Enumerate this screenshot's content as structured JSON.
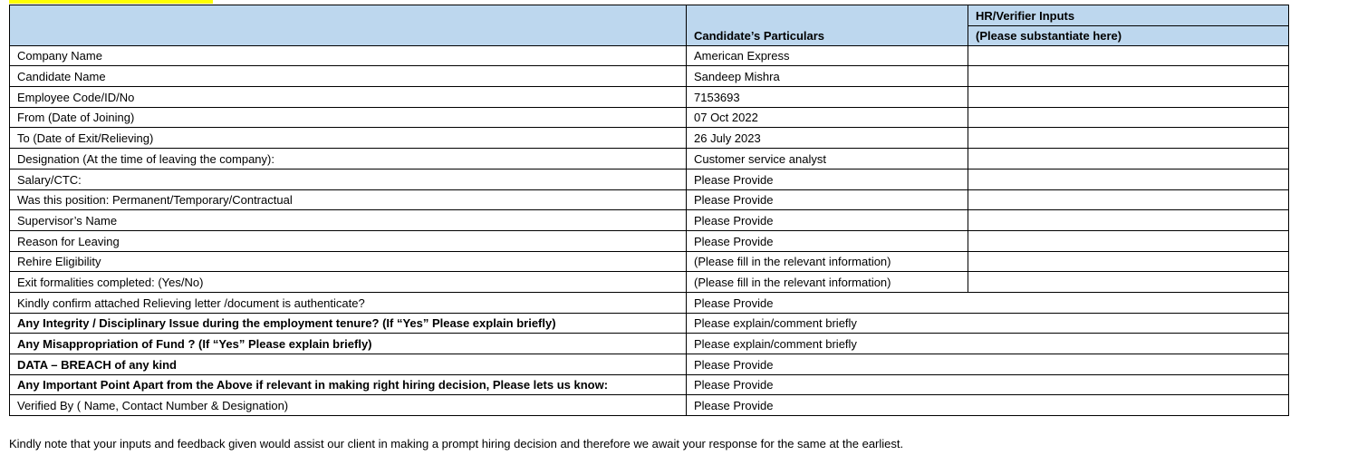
{
  "header": {
    "col2": "Candidate’s Particulars",
    "col3_line1": "HR/Verifier Inputs",
    "col3_line2": "(Please substantiate here)"
  },
  "rows": [
    {
      "label": "Company Name",
      "value": "American Express",
      "bold": false,
      "merged": false
    },
    {
      "label": "Candidate Name",
      "value": "Sandeep Mishra",
      "bold": false,
      "merged": false
    },
    {
      "label": "Employee Code/ID/No",
      "value": "7153693",
      "bold": false,
      "merged": false
    },
    {
      "label": "From (Date of Joining)",
      "value": "07 Oct 2022",
      "bold": false,
      "merged": false
    },
    {
      "label": "To (Date of Exit/Relieving)",
      "value": "26 July 2023",
      "bold": false,
      "merged": false
    },
    {
      "label": "Designation (At the time of leaving the company):",
      "value": "Customer service analyst",
      "bold": false,
      "merged": false
    },
    {
      "label": "Salary/CTC:",
      "value": "Please Provide",
      "bold": false,
      "merged": false
    },
    {
      "label": "Was this position: Permanent/Temporary/Contractual",
      "value": "Please Provide",
      "bold": false,
      "merged": false
    },
    {
      "label": "Supervisor’s Name",
      "value": "Please Provide",
      "bold": false,
      "merged": false
    },
    {
      "label": "Reason for Leaving",
      "value": "Please Provide",
      "bold": false,
      "merged": false
    },
    {
      "label": "Rehire Eligibility",
      "value": "(Please fill in the relevant information)",
      "bold": false,
      "merged": false
    },
    {
      "label": "Exit formalities completed: (Yes/No)",
      "value": "(Please fill in the relevant information)",
      "bold": false,
      "merged": false
    },
    {
      "label": "Kindly confirm attached Relieving letter /document is authenticate?",
      "value": "Please Provide",
      "bold": false,
      "merged": true
    },
    {
      "label": "Any Integrity / Disciplinary Issue during the employment tenure? (If “Yes” Please explain briefly)",
      "value": "Please explain/comment briefly",
      "bold": true,
      "merged": true
    },
    {
      "label": "Any Misappropriation of Fund ? (If “Yes” Please explain briefly)",
      "value": "Please explain/comment briefly",
      "bold": true,
      "merged": true
    },
    {
      "label": "DATA – BREACH of any kind",
      "value": "Please Provide",
      "bold": true,
      "merged": true
    },
    {
      "label": "Any Important Point Apart from the Above if relevant in making right hiring decision, Please lets us know:",
      "value": "Please Provide",
      "bold": true,
      "merged": true
    },
    {
      "label": "Verified By ( Name, Contact Number & Designation)",
      "value": "Please Provide",
      "bold": false,
      "merged": true
    }
  ],
  "footer_note": "Kindly note that your inputs and feedback given would assist our client in making a prompt hiring decision and therefore we await your response for the same at the earliest.",
  "colors": {
    "header_bg": "#bdd7ee",
    "highlight": "#ffff00"
  }
}
